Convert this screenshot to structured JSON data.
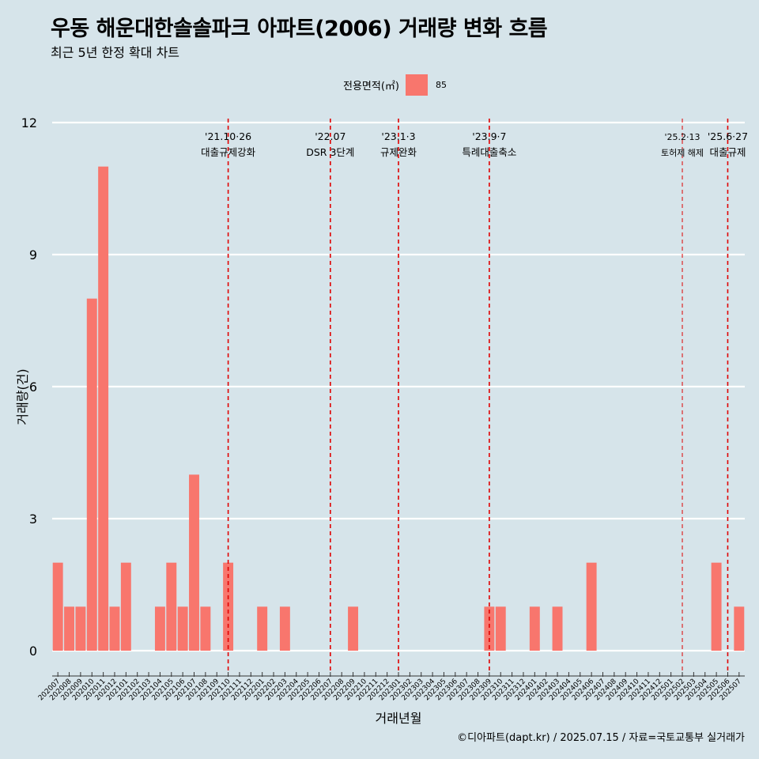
{
  "title": "우동 해운대한솔솔파크 아파트(2006) 거래량 변화 흐름",
  "subtitle": "최근 5년 한정 확대 차트",
  "legend": {
    "title": "전용면적(㎡)",
    "items": [
      {
        "label": "85",
        "color": "#F8766D"
      }
    ]
  },
  "caption": "©디아파트(dapt.kr) / 2025.07.15 / 자료=국토교통부 실거래가",
  "colors": {
    "background": "#d6e4ea",
    "bar": "#F8766D",
    "event_line": "#e00000",
    "grid": "#ffffff"
  },
  "chart_data": {
    "type": "bar",
    "xlabel": "거래년월",
    "ylabel": "거래량(건)",
    "ylim": [
      0,
      12
    ],
    "yticks": [
      0,
      3,
      6,
      9,
      12
    ],
    "grid": true,
    "legend_position": "top",
    "categories": [
      "202007",
      "202008",
      "202009",
      "202010",
      "202011",
      "202012",
      "202101",
      "202102",
      "202103",
      "202104",
      "202105",
      "202106",
      "202107",
      "202108",
      "202109",
      "202110",
      "202111",
      "202112",
      "202201",
      "202202",
      "202203",
      "202204",
      "202205",
      "202206",
      "202207",
      "202208",
      "202209",
      "202210",
      "202211",
      "202212",
      "202301",
      "202302",
      "202303",
      "202304",
      "202305",
      "202306",
      "202307",
      "202308",
      "202309",
      "202310",
      "202311",
      "202312",
      "202401",
      "202402",
      "202403",
      "202404",
      "202405",
      "202406",
      "202407",
      "202408",
      "202409",
      "202410",
      "202411",
      "202412",
      "202501",
      "202502",
      "202503",
      "202504",
      "202505",
      "202506",
      "202507"
    ],
    "series": [
      {
        "name": "85",
        "values": [
          2,
          1,
          1,
          8,
          11,
          1,
          2,
          0,
          0,
          1,
          2,
          1,
          4,
          1,
          0,
          2,
          0,
          0,
          1,
          0,
          1,
          0,
          0,
          0,
          0,
          0,
          1,
          0,
          0,
          0,
          0,
          0,
          0,
          0,
          0,
          0,
          0,
          0,
          1,
          1,
          0,
          0,
          1,
          0,
          1,
          0,
          0,
          2,
          0,
          0,
          0,
          0,
          0,
          0,
          0,
          0,
          0,
          0,
          2,
          0,
          1
        ]
      }
    ],
    "events": [
      {
        "date": "'21.10·26",
        "label": "대출규제강화",
        "category": "202110"
      },
      {
        "date": "'22.07",
        "label": "DSR 3단계",
        "category": "202207"
      },
      {
        "date": "'23.1·3",
        "label": "규제완화",
        "category": "202301"
      },
      {
        "date": "'23.9·7",
        "label": "특례대출축소",
        "category": "202309"
      },
      {
        "date": "'25.2·13",
        "label": "토허제 해제",
        "category": "202502",
        "minor": true
      },
      {
        "date": "'25.6·27",
        "label": "대출규제",
        "category": "202506"
      }
    ]
  }
}
